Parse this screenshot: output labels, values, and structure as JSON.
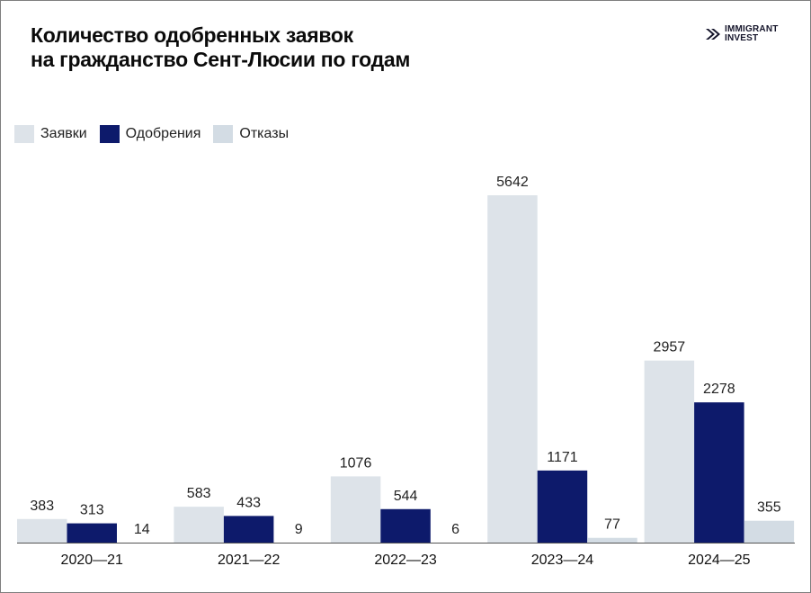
{
  "header": {
    "title_line1": "Количество одобренных заявок",
    "title_line2": "на гражданство Сент-Люсии по годам"
  },
  "logo": {
    "line1": "IMMIGRANT",
    "line2": "INVEST",
    "icon": "chevron-logo-icon",
    "color": "#14142a"
  },
  "chart_data": {
    "type": "bar",
    "title": "Количество одобренных заявок на гражданство Сент-Люсии по годам",
    "xlabel": "",
    "ylabel": "",
    "categories": [
      "2020—21",
      "2021—22",
      "2022—23",
      "2023—24",
      "2024—25"
    ],
    "series": [
      {
        "name": "Заявки",
        "color": "#dde3e9",
        "values": [
          383,
          583,
          1076,
          5642,
          2957
        ]
      },
      {
        "name": "Одобрения",
        "color": "#0d1a6b",
        "values": [
          313,
          433,
          544,
          1171,
          2278
        ]
      },
      {
        "name": "Отказы",
        "color": "#d3dce4",
        "values": [
          14,
          9,
          6,
          77,
          355
        ]
      }
    ],
    "ylim": [
      0,
      5642
    ],
    "grid": false,
    "legend": "top-left",
    "data_labels": true
  }
}
